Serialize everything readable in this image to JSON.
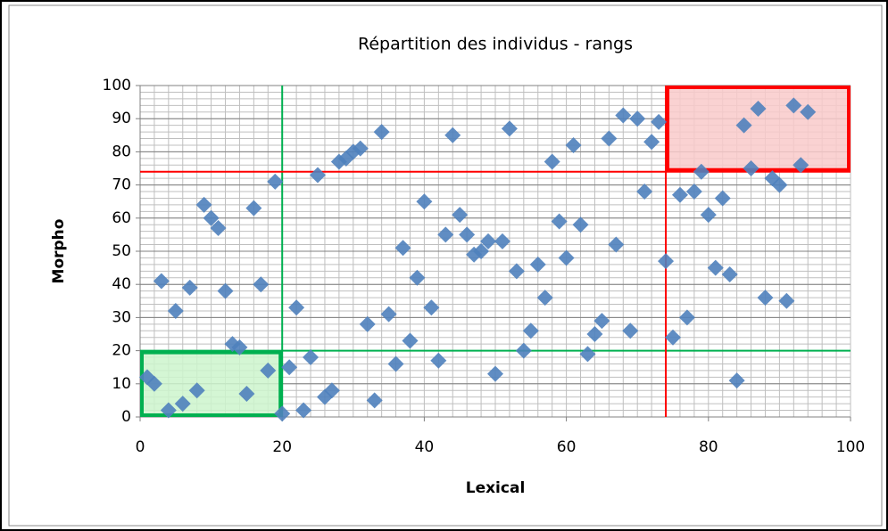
{
  "chart_data": {
    "type": "scatter",
    "title": "Répartition des individus - rangs",
    "x_label": "Lexical",
    "y_label": "Morpho",
    "series": [
      {
        "color": "#4f81bd",
        "x": [
          1,
          2,
          3,
          4,
          5,
          6,
          7,
          8,
          9,
          10,
          11,
          12,
          13,
          14,
          15,
          16,
          17,
          18,
          19,
          20,
          21,
          22,
          23,
          24,
          25,
          26,
          27,
          28,
          29,
          30,
          31,
          32,
          33,
          34,
          35,
          36,
          37,
          38,
          39,
          40,
          41,
          42,
          43,
          44,
          45,
          46,
          47,
          48,
          49,
          50,
          51,
          52,
          53,
          54,
          55,
          56,
          57,
          58,
          59,
          60,
          61,
          62,
          63,
          64,
          65,
          66,
          67,
          68,
          69,
          70,
          71,
          72,
          73,
          74,
          75,
          76,
          77,
          78,
          79,
          80,
          81,
          82,
          83,
          84,
          85,
          86,
          87,
          88,
          89,
          90,
          91,
          92,
          93,
          94
        ],
        "values": [
          12,
          10,
          41,
          2,
          32,
          4,
          39,
          8,
          64,
          60,
          57,
          38,
          22,
          21,
          7,
          63,
          40,
          14,
          71,
          1,
          15,
          33,
          2,
          18,
          73,
          6,
          8,
          77,
          78,
          80,
          81,
          28,
          5,
          86,
          31,
          16,
          51,
          23,
          42,
          65,
          33,
          17,
          55,
          85,
          61,
          55,
          49,
          50,
          53,
          13,
          53,
          87,
          44,
          20,
          26,
          46,
          36,
          77,
          59,
          48,
          82,
          58,
          19,
          25,
          29,
          84,
          52,
          91,
          26,
          90,
          68,
          83,
          89,
          47,
          24,
          67,
          30,
          68,
          74,
          61,
          45,
          66,
          43,
          11,
          88,
          75,
          93,
          36,
          72,
          70,
          35,
          94,
          76,
          92
        ]
      }
    ],
    "xlim": [
      0,
      100
    ],
    "xticks": [
      0,
      20,
      40,
      60,
      80,
      100
    ],
    "ylim": [
      0,
      100
    ],
    "yticks": [
      0,
      10,
      20,
      30,
      40,
      50,
      60,
      70,
      80,
      90,
      100
    ],
    "grid": true,
    "minor_grid_step": 2,
    "reference_lines": [
      {
        "axis": "x",
        "value": 20,
        "color": "#00b050"
      },
      {
        "axis": "y",
        "value": 20,
        "color": "#00b050"
      },
      {
        "axis": "x",
        "value": 74,
        "color": "#ff0000"
      },
      {
        "axis": "y",
        "value": 74,
        "color": "#ff0000"
      }
    ],
    "highlight_boxes": [
      {
        "xlim": [
          0,
          20
        ],
        "ylim": [
          0,
          20
        ],
        "color": "#00b050",
        "fill": "#ccf5cc"
      },
      {
        "xlim": [
          74,
          100
        ],
        "ylim": [
          74,
          100
        ],
        "color": "#ff0000",
        "fill": "#f9caca"
      }
    ]
  }
}
